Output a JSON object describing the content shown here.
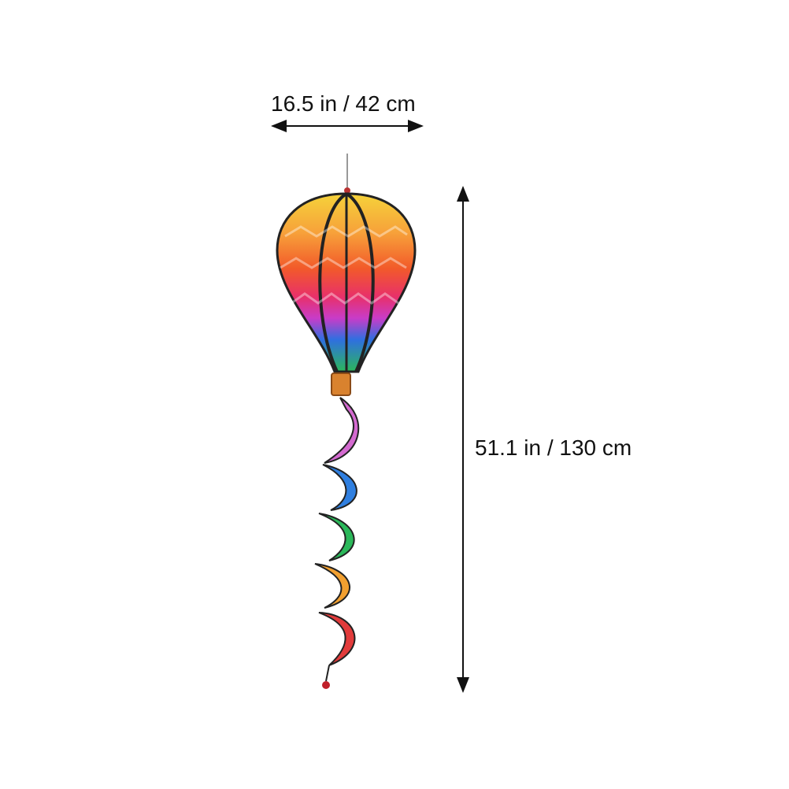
{
  "dimensions": {
    "width_label": "16.5 in / 42 cm",
    "height_label": "51.1 in / 130 cm"
  },
  "product": {
    "subject": "rainbow hot air balloon wind spinner with twister tail",
    "colors": [
      "#f5d33a",
      "#f7a13a",
      "#f25a2a",
      "#e8306a",
      "#c83cc8",
      "#2f6fe0",
      "#2bb85a"
    ]
  }
}
